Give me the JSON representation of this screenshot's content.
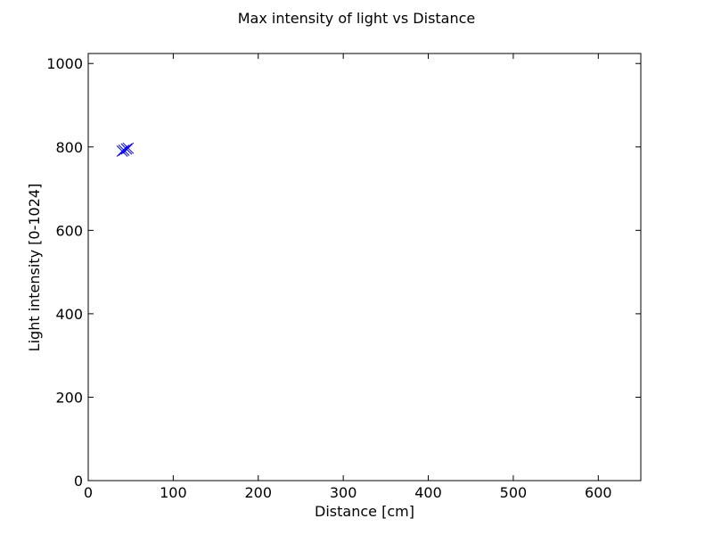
{
  "chart_data": {
    "type": "scatter",
    "title": "Max intensity of light vs Distance",
    "xlabel": "Distance [cm]",
    "ylabel": "Light intensity [0-1024]",
    "xlim": [
      0,
      650
    ],
    "ylim": [
      0,
      1024
    ],
    "xticks": [
      0,
      100,
      200,
      300,
      400,
      500,
      600
    ],
    "yticks": [
      0,
      200,
      400,
      600,
      800,
      1000
    ],
    "grid": false,
    "marker": "x",
    "color": "#0000ff",
    "series": [
      {
        "points": [
          {
            "x": 40,
            "y": 790
          },
          {
            "x": 42,
            "y": 792
          },
          {
            "x": 45,
            "y": 795
          },
          {
            "x": 47,
            "y": 797
          }
        ]
      }
    ]
  }
}
